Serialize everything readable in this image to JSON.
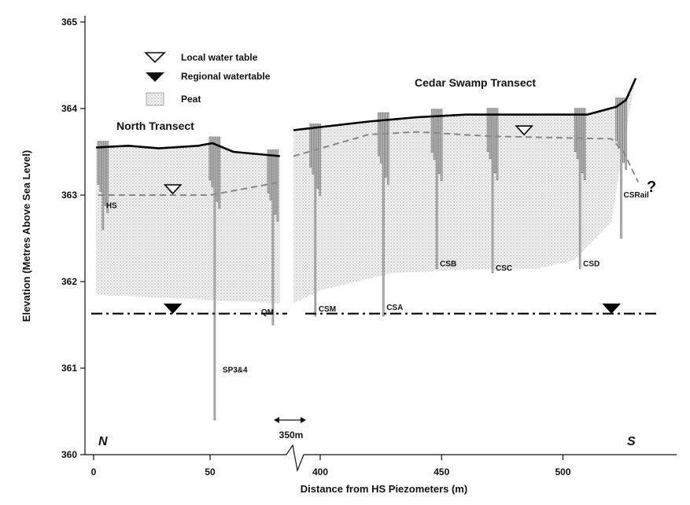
{
  "chart_data": {
    "type": "cross-section",
    "xlabel": "Distance from HS Piezometers (m)",
    "ylabel": "Elevation (Metres Above Sea Level)",
    "ylim": [
      360,
      365
    ],
    "y_ticks": [
      360,
      361,
      362,
      363,
      364,
      365
    ],
    "x_ticks": [
      "0",
      "50",
      "400",
      "450",
      "500"
    ],
    "break_label": "350m",
    "direction_left": "N",
    "direction_right": "S",
    "legend": [
      {
        "symbol": "local-water-table",
        "label": "Local water table"
      },
      {
        "symbol": "regional-water-table",
        "label": "Regional watertable"
      },
      {
        "symbol": "peat",
        "label": "Peat"
      }
    ],
    "north_transect": {
      "title": "North Transect",
      "ground_surface": [
        [
          1,
          363.55
        ],
        [
          15,
          363.57
        ],
        [
          28,
          363.54
        ],
        [
          45,
          363.57
        ],
        [
          51,
          363.6
        ],
        [
          60,
          363.5
        ],
        [
          80,
          363.45
        ]
      ],
      "local_water_table": [
        [
          2,
          363.0
        ],
        [
          50,
          363.0
        ],
        [
          60,
          363.05
        ],
        [
          80,
          363.15
        ]
      ],
      "peat_base": [
        [
          1,
          361.85
        ],
        [
          40,
          361.8
        ],
        [
          80,
          361.75
        ]
      ],
      "piezometers": [
        {
          "label": "HS",
          "x": 4,
          "top": 363.55,
          "bottom": 362.6
        },
        {
          "label": "SP3&4",
          "x": 52,
          "top": 363.6,
          "bottom": 360.4
        },
        {
          "label": "QM",
          "x": 77,
          "top": 363.45,
          "bottom": 361.5
        }
      ]
    },
    "cedar_swamp_transect": {
      "title": "Cedar Swamp Transect",
      "ground_surface": [
        [
          389,
          363.75
        ],
        [
          420,
          363.85
        ],
        [
          440,
          363.9
        ],
        [
          460,
          363.93
        ],
        [
          510,
          363.93
        ],
        [
          522,
          364.02
        ],
        [
          526,
          364.1
        ],
        [
          530,
          364.35
        ]
      ],
      "local_water_table": [
        [
          389,
          363.45
        ],
        [
          420,
          363.7
        ],
        [
          440,
          363.73
        ],
        [
          470,
          363.68
        ],
        [
          520,
          363.65
        ],
        [
          525,
          363.5
        ],
        [
          531,
          363.15
        ]
      ],
      "peat_base": [
        [
          389,
          361.75
        ],
        [
          400,
          361.9
        ],
        [
          430,
          362.1
        ],
        [
          470,
          362.15
        ],
        [
          490,
          362.15
        ],
        [
          505,
          362.25
        ],
        [
          520,
          362.7
        ],
        [
          525,
          363.6
        ]
      ],
      "piezometers": [
        {
          "label": "CSM",
          "x": 398,
          "top": 363.75,
          "bottom": 361.6
        },
        {
          "label": "CSA",
          "x": 426,
          "top": 363.88,
          "bottom": 361.6
        },
        {
          "label": "CSB",
          "x": 448,
          "top": 363.92,
          "bottom": 362.15
        },
        {
          "label": "CSC",
          "x": 471,
          "top": 363.93,
          "bottom": 362.1
        },
        {
          "label": "CSD",
          "x": 507,
          "top": 363.93,
          "bottom": 362.15
        },
        {
          "label": "CSRail",
          "x": 524,
          "top": 364.05,
          "bottom": 362.5
        }
      ]
    },
    "regional_water_table": 361.63,
    "unknown_marker": "?"
  }
}
